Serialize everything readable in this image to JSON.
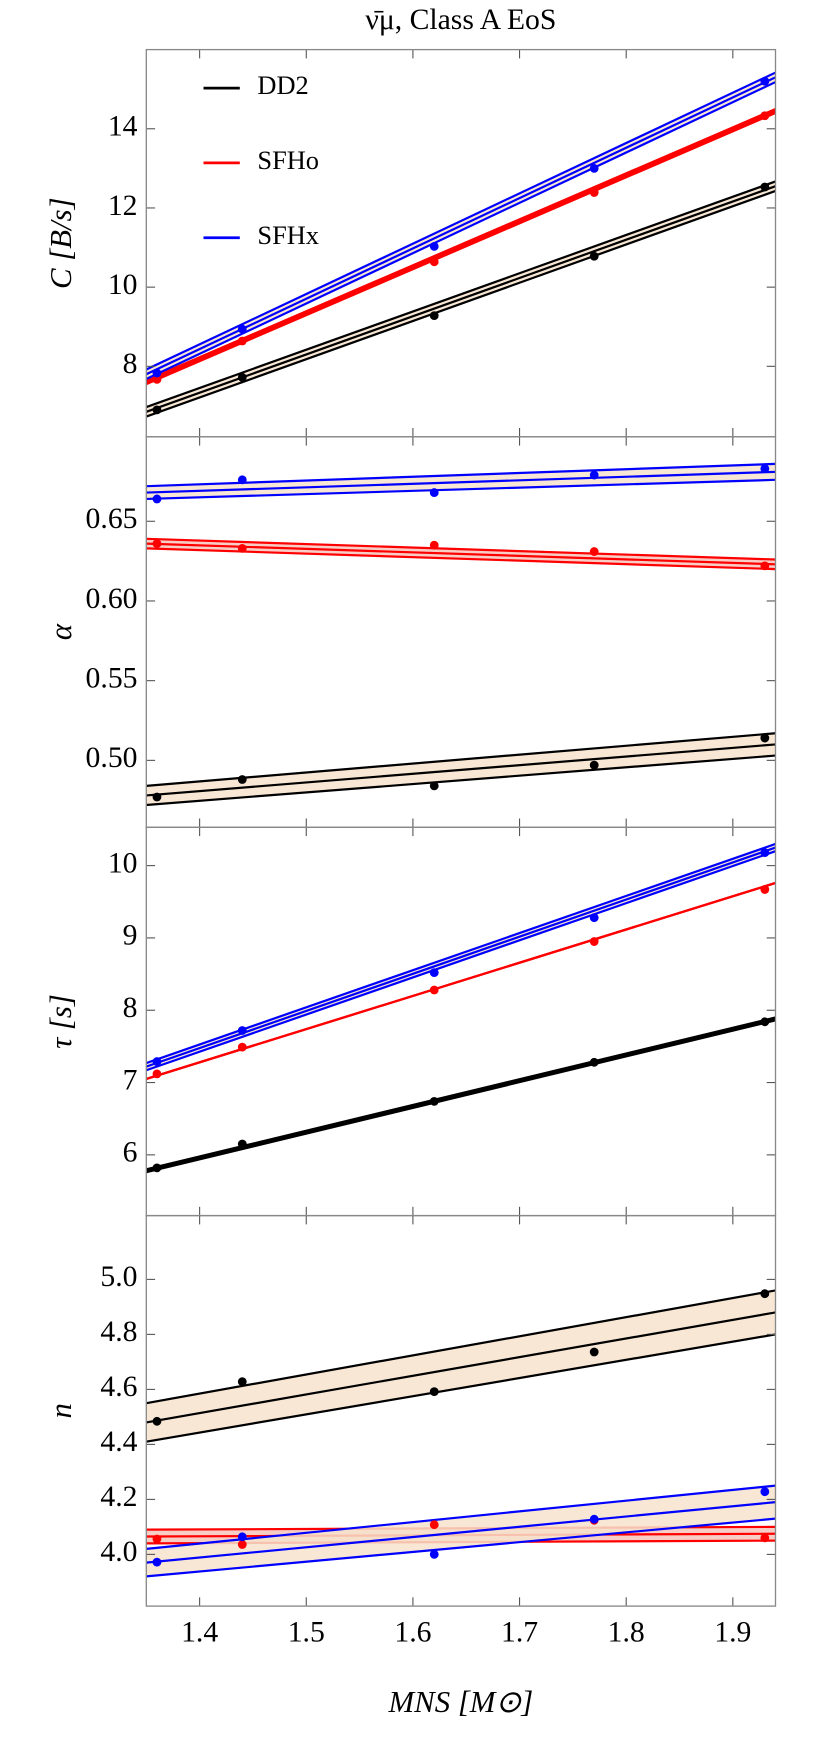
{
  "chart_data": [
    {
      "type": "line",
      "title": "ν̄μ, Class A EoS",
      "ylabel": "C [B/s]",
      "legend": "upper left",
      "x": [
        1.36,
        1.44,
        1.62,
        1.77,
        1.93
      ],
      "xlim": [
        1.35,
        1.94
      ],
      "ylim": [
        6.22,
        16
      ],
      "yticks": [
        8,
        10,
        12,
        14
      ],
      "series": [
        {
          "name": "DD2",
          "color": "#000000",
          "band_color": "#f6e3cc",
          "values": [
            6.9,
            7.72,
            9.28,
            10.78,
            12.53
          ],
          "fit": [
            6.85,
            12.55
          ],
          "fit_upper": [
            6.97,
            12.67
          ],
          "fit_lower": [
            6.73,
            12.43
          ]
        },
        {
          "name": "SFHo",
          "color": "#ff0000",
          "band_color": "#f7c4bc",
          "values": [
            7.67,
            8.64,
            10.64,
            12.39,
            14.33
          ],
          "fit": [
            7.6,
            14.45
          ],
          "fit_upper": [
            7.65,
            14.5
          ],
          "fit_lower": [
            7.55,
            14.4
          ]
        },
        {
          "name": "SFHx",
          "color": "#0000ff",
          "band_color": "#f6e3cc",
          "values": [
            7.83,
            8.94,
            11.03,
            13.0,
            15.2
          ],
          "fit": [
            7.8,
            15.3
          ],
          "fit_upper": [
            7.92,
            15.42
          ],
          "fit_lower": [
            7.68,
            15.18
          ]
        }
      ]
    },
    {
      "type": "line",
      "ylabel": "α",
      "x": [
        1.36,
        1.44,
        1.62,
        1.77,
        1.93
      ],
      "xlim": [
        1.35,
        1.94
      ],
      "ylim": [
        0.458,
        0.703
      ],
      "yticks": [
        {
          "value": 0.5,
          "label": "0.50"
        },
        0.55,
        {
          "value": 0.6,
          "label": "0.60"
        },
        0.65
      ],
      "series": [
        {
          "color": "#000000",
          "band_color": "#f6e3cc",
          "values": [
            0.477,
            0.488,
            0.484,
            0.497,
            0.514
          ],
          "fit": [
            0.478,
            0.51
          ],
          "fit_upper": [
            0.484,
            0.517
          ],
          "fit_lower": [
            0.472,
            0.503
          ]
        },
        {
          "color": "#ff0000",
          "band_color": "#f7c4bc",
          "values": [
            0.636,
            0.633,
            0.635,
            0.631,
            0.622
          ],
          "fit": [
            0.636,
            0.623
          ],
          "fit_upper": [
            0.639,
            0.626
          ],
          "fit_lower": [
            0.633,
            0.62
          ]
        },
        {
          "color": "#0000ff",
          "band_color": "#f6e3cc",
          "values": [
            0.664,
            0.676,
            0.668,
            0.679,
            0.683
          ],
          "fit": [
            0.668,
            0.681
          ],
          "fit_upper": [
            0.672,
            0.686
          ],
          "fit_lower": [
            0.664,
            0.676
          ]
        }
      ]
    },
    {
      "type": "line",
      "ylabel": "τ [s]",
      "x": [
        1.36,
        1.44,
        1.62,
        1.77,
        1.93
      ],
      "xlim": [
        1.35,
        1.94
      ],
      "ylim": [
        5.16,
        10.53
      ],
      "yticks": [
        6,
        7,
        8,
        9,
        10
      ],
      "series": [
        {
          "color": "#000000",
          "band_color": "#f6e3cc",
          "values": [
            5.82,
            6.15,
            6.74,
            7.28,
            7.84
          ],
          "fit": [
            5.78,
            7.88
          ],
          "fit_upper": [
            5.8,
            7.9
          ],
          "fit_lower": [
            5.76,
            7.86
          ]
        },
        {
          "color": "#ff0000",
          "band_color": "#f7c4bc",
          "values": [
            7.12,
            7.49,
            8.28,
            8.95,
            9.67
          ],
          "fit": [
            7.05,
            9.76
          ],
          "fit_upper": [
            7.05,
            9.76
          ],
          "fit_lower": [
            7.05,
            9.76
          ]
        },
        {
          "color": "#0000ff",
          "band_color": "#f6e3cc",
          "values": [
            7.29,
            7.72,
            8.52,
            9.28,
            10.18
          ],
          "fit": [
            7.22,
            10.25
          ],
          "fit_upper": [
            7.27,
            10.3
          ],
          "fit_lower": [
            7.17,
            10.2
          ]
        }
      ]
    },
    {
      "type": "line",
      "ylabel": "n",
      "xlabel": "MNS [M⊙]",
      "x": [
        1.36,
        1.44,
        1.62,
        1.77,
        1.93
      ],
      "xlim": [
        1.35,
        1.94
      ],
      "ylim": [
        3.812,
        5.232
      ],
      "xticks": [
        1.4,
        1.5,
        1.6,
        1.7,
        1.8,
        1.9
      ],
      "yticks": [
        {
          "value": 4.0,
          "label": "4.0"
        },
        4.2,
        4.4,
        4.6,
        4.8,
        {
          "value": 5.0,
          "label": "5.0"
        }
      ],
      "series": [
        {
          "color": "#000000",
          "band_color": "#f6e3cc",
          "values": [
            4.484,
            4.628,
            4.592,
            4.736,
            4.948
          ],
          "fit": [
            4.48,
            4.88
          ],
          "fit_upper": [
            4.55,
            4.96
          ],
          "fit_lower": [
            4.41,
            4.8
          ]
        },
        {
          "color": "#ff0000",
          "band_color": "#f7c4bc",
          "values": [
            4.056,
            4.036,
            4.108,
            4.124,
            4.06
          ],
          "fit": [
            4.065,
            4.075
          ],
          "fit_upper": [
            4.09,
            4.1
          ],
          "fit_lower": [
            4.04,
            4.05
          ]
        },
        {
          "color": "#0000ff",
          "band_color": "#f6e3cc",
          "values": [
            3.972,
            4.064,
            4.0,
            4.128,
            4.228
          ],
          "fit": [
            3.97,
            4.19
          ],
          "fit_upper": [
            4.02,
            4.25
          ],
          "fit_lower": [
            3.92,
            4.13
          ]
        }
      ]
    }
  ]
}
